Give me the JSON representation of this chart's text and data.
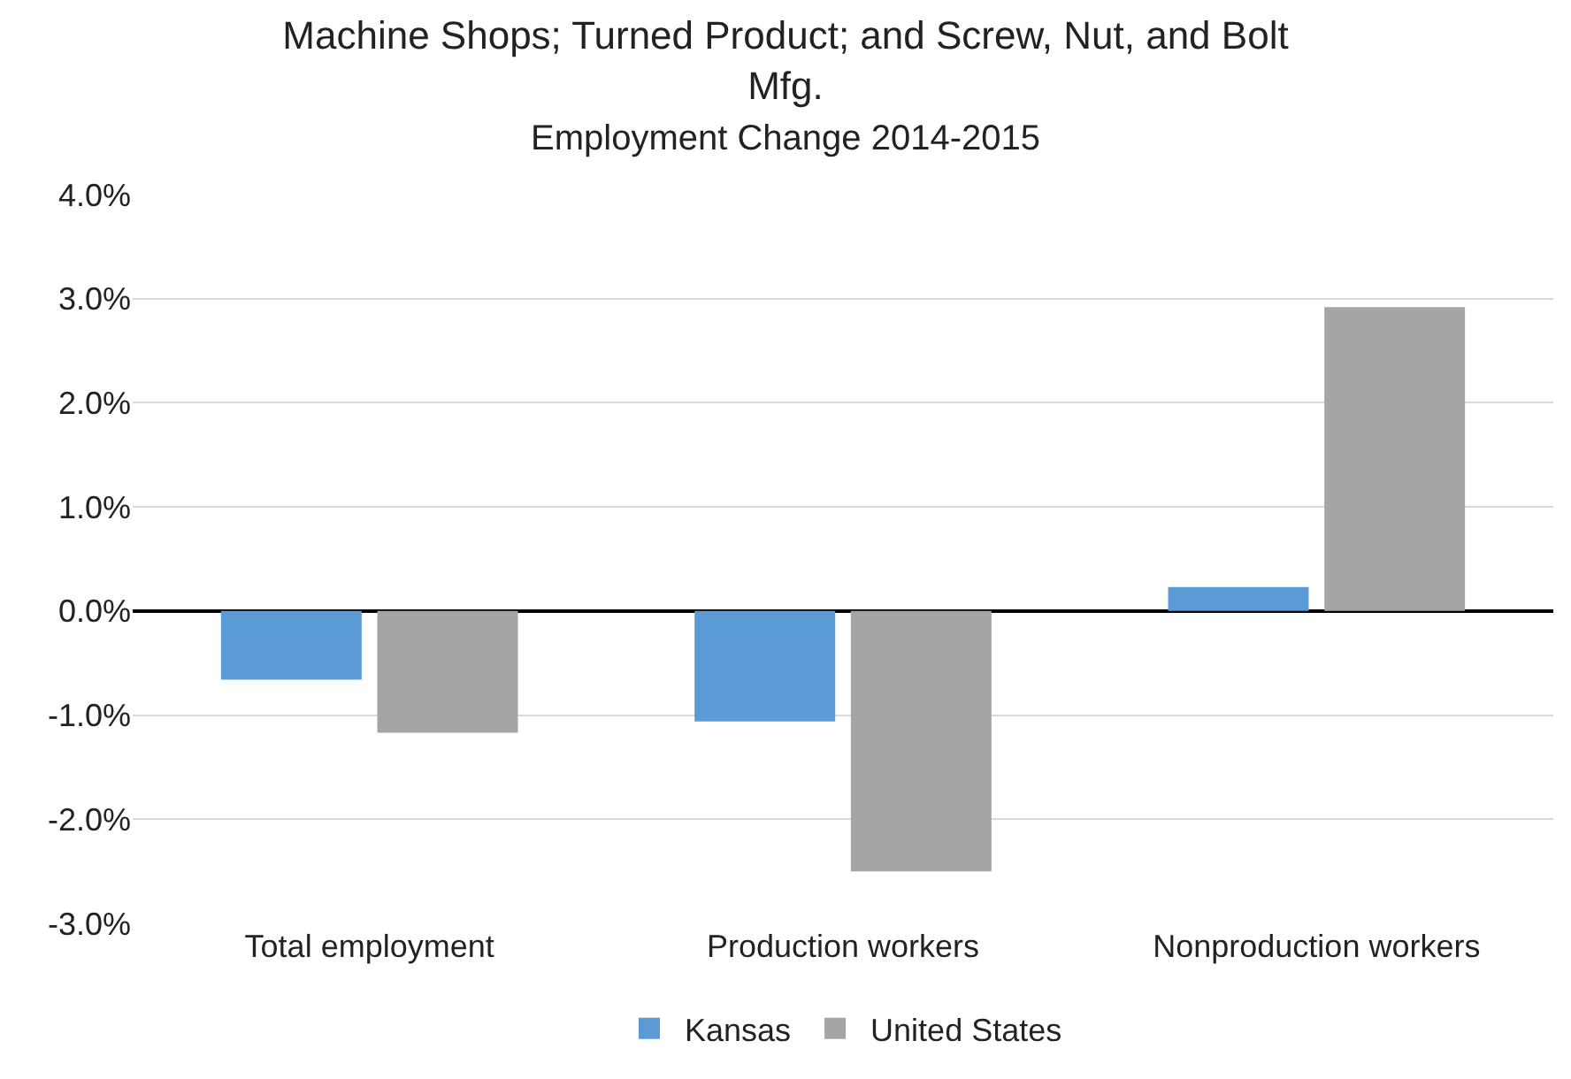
{
  "chart_data": {
    "type": "bar",
    "title": "Machine Shops; Turned Product; and Screw, Nut, and Bolt Mfg.",
    "subtitle": "Employment Change 2014-2015",
    "categories": [
      "Total employment",
      "Production workers",
      "Nonproduction workers"
    ],
    "series": [
      {
        "name": "Kansas",
        "color": "#5b9bd5",
        "values": [
          -0.66,
          -1.06,
          0.23
        ]
      },
      {
        "name": "United States",
        "color": "#a5a5a5",
        "values": [
          -1.17,
          -2.5,
          2.92
        ]
      }
    ],
    "ylim": [
      -3,
      4
    ],
    "yticks": [
      {
        "value": -3,
        "label": "-3.0%"
      },
      {
        "value": -2,
        "label": "-2.0%"
      },
      {
        "value": -1,
        "label": "-1.0%"
      },
      {
        "value": 0,
        "label": "0.0%"
      },
      {
        "value": 1,
        "label": "1.0%"
      },
      {
        "value": 2,
        "label": "2.0%"
      },
      {
        "value": 3,
        "label": "3.0%"
      },
      {
        "value": 4,
        "label": "4.0%"
      }
    ],
    "grid": "y",
    "legend": "bottom"
  }
}
